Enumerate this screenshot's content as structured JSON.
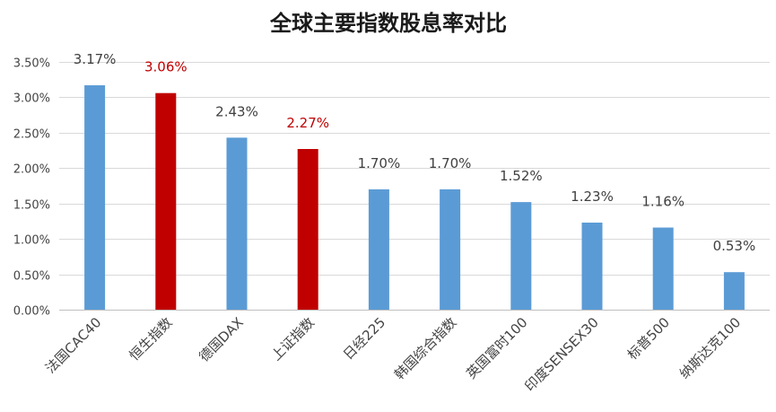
{
  "chart_data": {
    "type": "bar",
    "title": "全球主要指数股息率对比",
    "xlabel": "",
    "ylabel": "",
    "categories": [
      "法国CAC40",
      "恒生指数",
      "德国DAX",
      "上证指数",
      "日经225",
      "韩国综合指数",
      "英国富时100",
      "印度SENSEX30",
      "标普500",
      "纳斯达克100"
    ],
    "values": [
      3.17,
      3.06,
      2.43,
      2.27,
      1.7,
      1.7,
      1.52,
      1.23,
      1.16,
      0.53
    ],
    "data_labels": [
      "3.17%",
      "3.06%",
      "2.43%",
      "2.27%",
      "1.70%",
      "1.70%",
      "1.52%",
      "1.23%",
      "1.16%",
      "0.53%"
    ],
    "highlighted": [
      false,
      true,
      false,
      true,
      false,
      false,
      false,
      false,
      false,
      false
    ],
    "ylim": [
      0,
      3.5
    ],
    "yticks": [
      0,
      0.5,
      1.0,
      1.5,
      2.0,
      2.5,
      3.0,
      3.5
    ],
    "ytick_labels": [
      "0.00%",
      "0.50%",
      "1.00%",
      "1.50%",
      "2.00%",
      "2.50%",
      "3.00%",
      "3.50%"
    ],
    "grid": true,
    "legend": "none",
    "colors": {
      "bar": "#5b9bd5",
      "bar_highlight": "#c00000",
      "label": "#404040",
      "label_highlight": "#c00000"
    }
  }
}
